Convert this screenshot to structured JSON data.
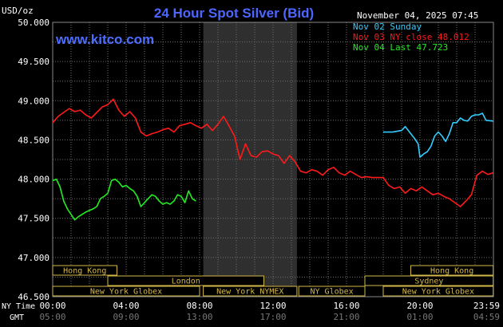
{
  "header": {
    "unit_label": "USD/oz",
    "title": "24 Hour Spot Silver (Bid)",
    "timestamp": "November 04, 2025 07:45",
    "brand": "www.kitco.com"
  },
  "legend": [
    {
      "text": "Nov 02 Sunday",
      "color": "#33ccff"
    },
    {
      "text": "Nov 03 NY close 48.012",
      "color": "#ff1a1a"
    },
    {
      "text": "Nov 04 Last 47.723",
      "color": "#22ee22"
    }
  ],
  "time_rows": {
    "ny_label": "NY Time",
    "gmt_label": "GMT",
    "ny_ticks": [
      "00:00",
      "04:00",
      "08:00",
      "12:00",
      "16:00",
      "20:00",
      "23:59"
    ],
    "gmt_ticks": [
      "05:00",
      "09:00",
      "13:00",
      "17:00",
      "21:00",
      "01:00",
      "04:59"
    ]
  },
  "sessions": [
    {
      "label": "Hong Kong",
      "start": 0,
      "end": 3.5,
      "row": 0
    },
    {
      "label": "Hong Kong",
      "start": 19.5,
      "end": 23.99,
      "row": 0
    },
    {
      "label": "London",
      "start": 3,
      "end": 11.5,
      "row": 1
    },
    {
      "label": "Sydney",
      "start": 17,
      "end": 23.99,
      "row": 1
    },
    {
      "label": "New York Globex",
      "start": 0,
      "end": 8,
      "row": 2
    },
    {
      "label": "New York NYMEX",
      "start": 8.2,
      "end": 13.3,
      "row": 2
    },
    {
      "label": "NY Globex",
      "start": 13.4,
      "end": 17,
      "row": 2
    },
    {
      "label": "New York Globex",
      "start": 18,
      "end": 23.99,
      "row": 2
    }
  ],
  "colors": {
    "background": "#000000",
    "plot_border": "#888888",
    "grid": "#6e6e6e",
    "shaded_band": "#2f2f2f",
    "title": "#4d66ff",
    "brand": "#4d6dff",
    "tick_text": "#ffffff",
    "session_fill": "#000000",
    "session_border": "#d4b74a",
    "session_text": "#d4b74a"
  },
  "chart_data": {
    "type": "line",
    "title": "24 Hour Spot Silver (Bid)",
    "ylabel": "USD/oz",
    "xlabel": "",
    "xlim": [
      0,
      24
    ],
    "ylim": [
      46.5,
      50.0
    ],
    "y_ticks": [
      "46.500",
      "47.000",
      "47.500",
      "48.000",
      "48.500",
      "49.000",
      "49.500",
      "50.000"
    ],
    "y_tick_values": [
      46.5,
      47.0,
      47.5,
      48.0,
      48.5,
      49.0,
      49.5,
      50.0
    ],
    "x_tick_values": [
      0,
      4,
      8,
      12,
      16,
      20,
      24
    ],
    "nymex_shading": [
      8.2,
      13.3
    ],
    "grid": true,
    "legend_position": "top-right",
    "series": [
      {
        "name": "Nov 02 Sunday",
        "color": "#33ccff",
        "x": [
          18.0,
          18.5,
          19.0,
          19.2,
          19.5,
          19.7,
          19.9,
          20.0,
          20.2,
          20.4,
          20.6,
          20.8,
          21.0,
          21.2,
          21.4,
          21.6,
          21.8,
          22.0,
          22.2,
          22.4,
          22.6,
          22.8,
          23.0,
          23.2,
          23.4,
          23.6,
          23.99
        ],
        "y": [
          48.6,
          48.6,
          48.62,
          48.67,
          48.58,
          48.52,
          48.45,
          48.28,
          48.32,
          48.35,
          48.42,
          48.55,
          48.6,
          48.55,
          48.48,
          48.58,
          48.72,
          48.72,
          48.78,
          48.75,
          48.74,
          48.8,
          48.82,
          48.82,
          48.84,
          48.75,
          48.74
        ]
      },
      {
        "name": "Nov 03 NY close 48.012",
        "color": "#ff1a1a",
        "x": [
          0.0,
          0.3,
          0.6,
          0.9,
          1.2,
          1.5,
          1.8,
          2.1,
          2.4,
          2.7,
          3.0,
          3.3,
          3.6,
          3.9,
          4.2,
          4.5,
          4.8,
          5.1,
          5.4,
          5.7,
          6.0,
          6.3,
          6.6,
          6.9,
          7.2,
          7.5,
          7.8,
          8.1,
          8.4,
          8.7,
          9.0,
          9.3,
          9.6,
          9.9,
          10.2,
          10.5,
          10.8,
          11.1,
          11.4,
          11.7,
          12.0,
          12.3,
          12.6,
          12.9,
          13.2,
          13.5,
          13.8,
          14.1,
          14.4,
          14.7,
          15.0,
          15.3,
          15.6,
          15.9,
          16.2,
          16.5,
          16.8,
          17.1,
          17.4,
          17.7,
          18.0,
          18.3,
          18.6,
          18.9,
          19.2,
          19.5,
          19.8,
          20.1,
          20.4,
          20.7,
          21.0,
          21.3,
          21.6,
          21.9,
          22.2,
          22.5,
          22.8,
          23.1,
          23.4,
          23.7,
          23.99
        ],
        "y": [
          48.72,
          48.8,
          48.85,
          48.9,
          48.86,
          48.88,
          48.82,
          48.78,
          48.85,
          48.92,
          48.95,
          49.02,
          48.88,
          48.8,
          48.86,
          48.78,
          48.6,
          48.55,
          48.58,
          48.6,
          48.63,
          48.65,
          48.6,
          48.68,
          48.7,
          48.72,
          48.68,
          48.65,
          48.7,
          48.62,
          48.7,
          48.8,
          48.68,
          48.55,
          48.25,
          48.45,
          48.3,
          48.28,
          48.35,
          48.36,
          48.32,
          48.3,
          48.2,
          48.3,
          48.22,
          48.1,
          48.08,
          48.12,
          48.1,
          48.05,
          48.12,
          48.15,
          48.08,
          48.05,
          48.1,
          48.06,
          48.02,
          48.03,
          48.02,
          48.02,
          48.02,
          47.92,
          47.88,
          47.9,
          47.82,
          47.88,
          47.85,
          47.9,
          47.85,
          47.8,
          47.82,
          47.78,
          47.75,
          47.7,
          47.65,
          47.72,
          47.8,
          48.05,
          48.1,
          48.06,
          48.08
        ]
      },
      {
        "name": "Nov 04 Last 47.723",
        "color": "#22ee22",
        "x": [
          0.0,
          0.2,
          0.4,
          0.6,
          0.8,
          1.0,
          1.2,
          1.4,
          1.6,
          1.8,
          2.0,
          2.2,
          2.4,
          2.6,
          2.8,
          3.0,
          3.2,
          3.4,
          3.6,
          3.8,
          4.0,
          4.2,
          4.4,
          4.6,
          4.8,
          5.0,
          5.2,
          5.4,
          5.6,
          5.8,
          6.0,
          6.2,
          6.4,
          6.6,
          6.8,
          7.0,
          7.2,
          7.4,
          7.6,
          7.8
        ],
        "y": [
          47.98,
          48.0,
          47.9,
          47.72,
          47.62,
          47.55,
          47.48,
          47.52,
          47.55,
          47.58,
          47.6,
          47.62,
          47.65,
          47.75,
          47.78,
          47.82,
          47.98,
          48.0,
          47.96,
          47.9,
          47.92,
          47.88,
          47.85,
          47.78,
          47.65,
          47.7,
          47.75,
          47.8,
          47.78,
          47.72,
          47.68,
          47.7,
          47.68,
          47.72,
          47.8,
          47.78,
          47.7,
          47.85,
          47.75,
          47.72
        ]
      }
    ]
  }
}
